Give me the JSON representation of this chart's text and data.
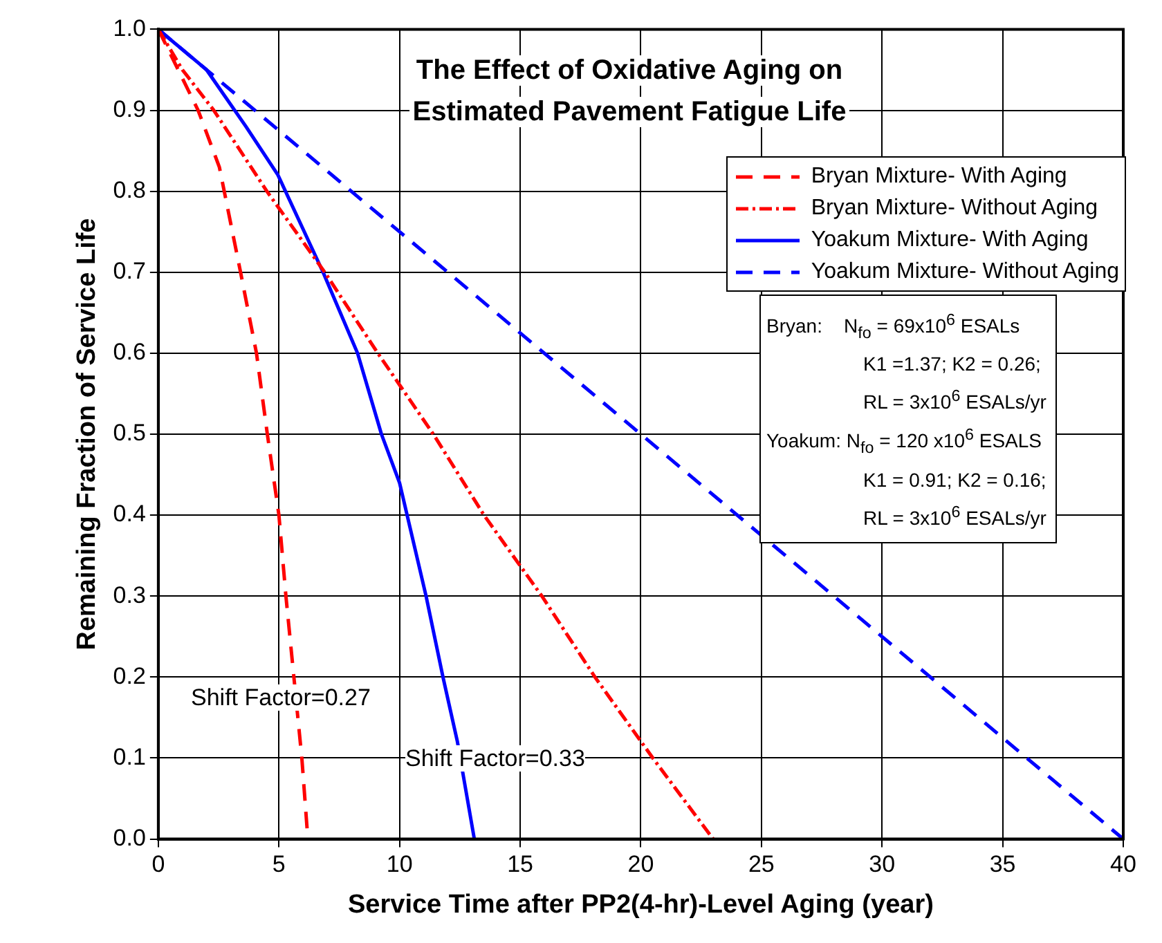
{
  "chart_data": {
    "type": "line",
    "title": "The Effect of Oxidative Aging on\nEstimated Pavement Fatigue Life",
    "xlabel": "Service Time after PP2(4-hr)-Level Aging (year)",
    "ylabel": "Remaining Fraction of Service Life",
    "xlim": [
      0,
      40
    ],
    "xticks": [
      0,
      5,
      10,
      15,
      20,
      25,
      30,
      35,
      40
    ],
    "ylim": [
      0,
      1
    ],
    "yticks": [
      {
        "value": 0,
        "label": "0.0"
      },
      0.1,
      0.2,
      0.3,
      0.4,
      0.5,
      0.6,
      0.7,
      0.8,
      0.9,
      {
        "value": 1,
        "label": "1.0"
      }
    ],
    "grid": true,
    "legend": "top right",
    "marker": "none",
    "series": [
      {
        "name": "Bryan Mixture- With Aging",
        "color": "#ff0000",
        "line_style": "dashed",
        "x": [
          0,
          1.65,
          2.53,
          3.41,
          4.07,
          4.52,
          5.0,
          5.29,
          5.62,
          5.95,
          6.2
        ],
        "values": [
          1,
          0.9,
          0.83,
          0.7,
          0.6,
          0.5,
          0.4,
          0.3,
          0.2,
          0.1,
          0
        ]
      },
      {
        "name": "Bryan Mixture- Without Aging",
        "color": "#ff0000",
        "line_style": "dashdot",
        "x": [
          0,
          1,
          2.3,
          4.5,
          6.9,
          9.1,
          11.4,
          13.5,
          15.9,
          18.1,
          20.5,
          23
        ],
        "values": [
          1,
          0.95,
          0.9,
          0.8,
          0.7,
          0.6,
          0.5,
          0.4,
          0.3,
          0.2,
          0.1,
          0
        ]
      },
      {
        "name": "Yoakum Mixture- With Aging",
        "color": "#0000ff",
        "line_style": "solid",
        "x": [
          0,
          2,
          3.63,
          4.96,
          6.83,
          8.26,
          9.25,
          10.0,
          11.1,
          11.8,
          12.4,
          13.1
        ],
        "values": [
          1,
          0.95,
          0.88,
          0.82,
          0.7,
          0.6,
          0.5,
          0.44,
          0.3,
          0.2,
          0.12,
          0
        ]
      },
      {
        "name": "Yoakum Mixture- Without Aging",
        "color": "#0000ff",
        "line_style": "dashed",
        "x": [
          0,
          10,
          20,
          30,
          40
        ],
        "values": [
          1,
          0.75,
          0.5,
          0.25,
          0
        ]
      }
    ],
    "annotations": [
      "Shift Factor=0.27",
      "Shift Factor=0.33",
      "Bryan:    N$_{fo}$ = 69x10$^{6}$ ESALs",
      "K1 =1.37; K2 = 0.26;",
      "RL = 3x10$^{6}$ ESALs/yr",
      "Yoakum: N$_{fo}$ = 120 x10$^{6}$ ESALS",
      "K1 = 0.91; K2 = 0.16;",
      "RL = 3x10$^{6}$ ESALs/yr"
    ]
  }
}
